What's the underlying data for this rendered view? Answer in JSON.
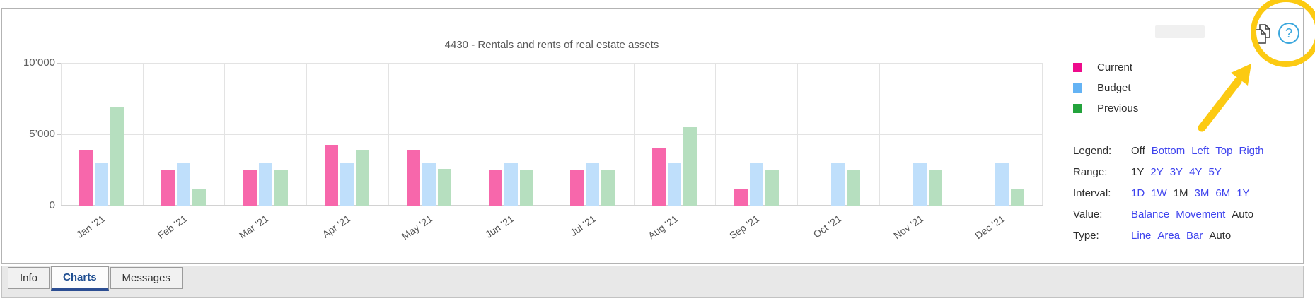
{
  "chart_data": {
    "type": "bar",
    "title": "4430 - Rentals and rents of real estate assets",
    "categories": [
      "Jan ’21",
      "Feb ’21",
      "Mar ’21",
      "Apr ’21",
      "May ’21",
      "Jun ’21",
      "Jul ’21",
      "Aug ’21",
      "Sep ’21",
      "Oct ’21",
      "Nov ’21",
      "Dec ’21"
    ],
    "series": [
      {
        "name": "Current",
        "legend_color": "#ee0b8c",
        "bar_color": "#f767ab",
        "values": [
          3900,
          2550,
          2550,
          4250,
          3900,
          2500,
          2500,
          4000,
          1150,
          0,
          0,
          0
        ]
      },
      {
        "name": "Budget",
        "legend_color": "#64b3f4",
        "bar_color": "#bfdffb",
        "values": [
          3000,
          3000,
          3000,
          3000,
          3000,
          3000,
          3000,
          3000,
          3000,
          3000,
          3000,
          3000
        ]
      },
      {
        "name": "Previous",
        "legend_color": "#23a33c",
        "bar_color": "#b6dfbf",
        "values": [
          6900,
          1150,
          2500,
          3900,
          2600,
          2500,
          2500,
          5500,
          2550,
          2550,
          2550,
          1150
        ]
      }
    ],
    "ylim": [
      0,
      10000
    ],
    "y_ticks": [
      {
        "value": 0,
        "label": "0"
      },
      {
        "value": 5000,
        "label": "5’000"
      },
      {
        "value": 10000,
        "label": "10’000"
      }
    ],
    "grid": true,
    "legend_position": "right"
  },
  "settings": {
    "rows": [
      {
        "label": "Legend:",
        "options": [
          {
            "text": "Off",
            "state": "selected"
          },
          {
            "text": "Bottom",
            "state": "link"
          },
          {
            "text": "Left",
            "state": "link"
          },
          {
            "text": "Top",
            "state": "link"
          },
          {
            "text": "Rigth",
            "state": "link"
          }
        ]
      },
      {
        "label": "Range:",
        "options": [
          {
            "text": "1Y",
            "state": "selected"
          },
          {
            "text": "2Y",
            "state": "link"
          },
          {
            "text": "3Y",
            "state": "link"
          },
          {
            "text": "4Y",
            "state": "link"
          },
          {
            "text": "5Y",
            "state": "link"
          }
        ]
      },
      {
        "label": "Interval:",
        "options": [
          {
            "text": "1D",
            "state": "link"
          },
          {
            "text": "1W",
            "state": "link"
          },
          {
            "text": "1M",
            "state": "selected"
          },
          {
            "text": "3M",
            "state": "link"
          },
          {
            "text": "6M",
            "state": "link"
          },
          {
            "text": "1Y",
            "state": "link"
          }
        ]
      },
      {
        "label": "Value:",
        "options": [
          {
            "text": "Balance",
            "state": "link"
          },
          {
            "text": "Movement",
            "state": "link"
          },
          {
            "text": "Auto",
            "state": "selected"
          }
        ]
      },
      {
        "label": "Type:",
        "options": [
          {
            "text": "Line",
            "state": "link"
          },
          {
            "text": "Area",
            "state": "link"
          },
          {
            "text": "Bar",
            "state": "link"
          },
          {
            "text": "Auto",
            "state": "selected"
          }
        ]
      }
    ],
    "link_color": "#3e43ee"
  },
  "toolbar": {
    "copy_icon": "copy-pages-icon",
    "help_icon": "question-mark-icon",
    "help_glyph": "?"
  },
  "tabs": [
    {
      "label": "Info",
      "active": false
    },
    {
      "label": "Charts",
      "active": true
    },
    {
      "label": "Messages",
      "active": false
    }
  ],
  "annotation": {
    "shape": "circle-and-arrow",
    "color": "#fcca12"
  }
}
